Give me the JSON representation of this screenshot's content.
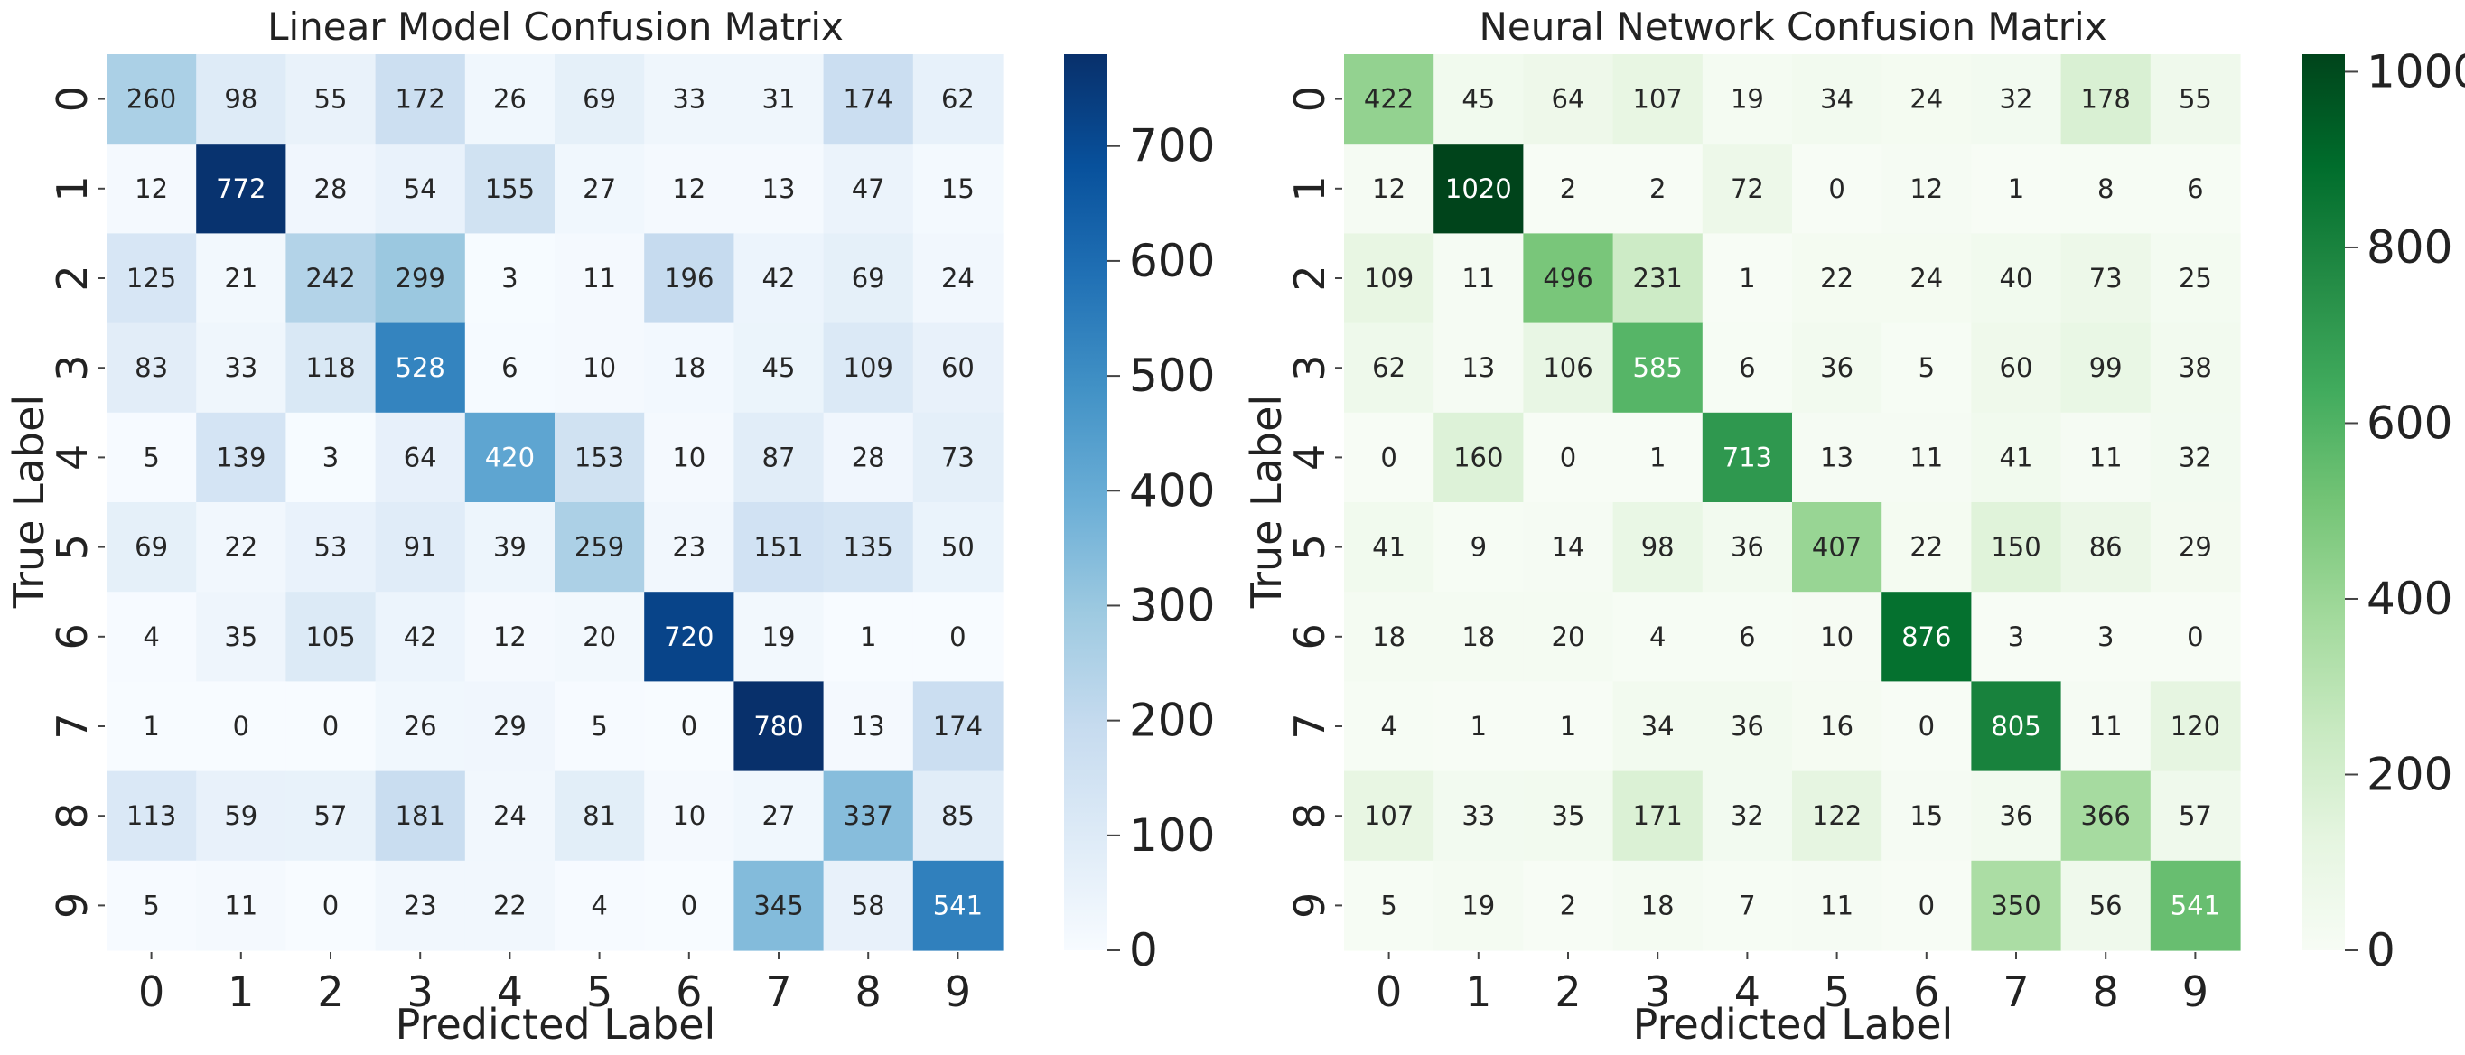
{
  "chart_data": [
    {
      "type": "heatmap",
      "title": "Linear Model Confusion Matrix",
      "xlabel": "Predicted Label",
      "ylabel": "True Label",
      "x_categories": [
        "0",
        "1",
        "2",
        "3",
        "4",
        "5",
        "6",
        "7",
        "8",
        "9"
      ],
      "y_categories": [
        "0",
        "1",
        "2",
        "3",
        "4",
        "5",
        "6",
        "7",
        "8",
        "9"
      ],
      "colormap": "Blues",
      "color_low": "#f7fbff",
      "color_high": "#08306b",
      "vmin": 0,
      "vmax": 780,
      "colorbar_ticks": [
        "0",
        "100",
        "200",
        "300",
        "400",
        "500",
        "600",
        "700"
      ],
      "values": [
        [
          260,
          98,
          55,
          172,
          26,
          69,
          33,
          31,
          174,
          62
        ],
        [
          12,
          772,
          28,
          54,
          155,
          27,
          12,
          13,
          47,
          15
        ],
        [
          125,
          21,
          242,
          299,
          3,
          11,
          196,
          42,
          69,
          24
        ],
        [
          83,
          33,
          118,
          528,
          6,
          10,
          18,
          45,
          109,
          60
        ],
        [
          5,
          139,
          3,
          64,
          420,
          153,
          10,
          87,
          28,
          73
        ],
        [
          69,
          22,
          53,
          91,
          39,
          259,
          23,
          151,
          135,
          50
        ],
        [
          4,
          35,
          105,
          42,
          12,
          20,
          720,
          19,
          1,
          0
        ],
        [
          1,
          0,
          0,
          26,
          29,
          5,
          0,
          780,
          13,
          174
        ],
        [
          113,
          59,
          57,
          181,
          24,
          81,
          10,
          27,
          337,
          85
        ],
        [
          5,
          11,
          0,
          23,
          22,
          4,
          0,
          345,
          58,
          541
        ]
      ]
    },
    {
      "type": "heatmap",
      "title": "Neural Network Confusion Matrix",
      "xlabel": "Predicted Label",
      "ylabel": "True Label",
      "x_categories": [
        "0",
        "1",
        "2",
        "3",
        "4",
        "5",
        "6",
        "7",
        "8",
        "9"
      ],
      "y_categories": [
        "0",
        "1",
        "2",
        "3",
        "4",
        "5",
        "6",
        "7",
        "8",
        "9"
      ],
      "colormap": "Greens",
      "color_low": "#f7fcf5",
      "color_high": "#00441b",
      "vmin": 0,
      "vmax": 1020,
      "colorbar_ticks": [
        "0",
        "200",
        "400",
        "600",
        "800",
        "1000"
      ],
      "values": [
        [
          422,
          45,
          64,
          107,
          19,
          34,
          24,
          32,
          178,
          55
        ],
        [
          12,
          1020,
          2,
          2,
          72,
          0,
          12,
          1,
          8,
          6
        ],
        [
          109,
          11,
          496,
          231,
          1,
          22,
          24,
          40,
          73,
          25
        ],
        [
          62,
          13,
          106,
          585,
          6,
          36,
          5,
          60,
          99,
          38
        ],
        [
          0,
          160,
          0,
          1,
          713,
          13,
          11,
          41,
          11,
          32
        ],
        [
          41,
          9,
          14,
          98,
          36,
          407,
          22,
          150,
          86,
          29
        ],
        [
          18,
          18,
          20,
          4,
          6,
          10,
          876,
          3,
          3,
          0
        ],
        [
          4,
          1,
          1,
          34,
          36,
          16,
          0,
          805,
          11,
          120
        ],
        [
          107,
          33,
          35,
          171,
          32,
          122,
          15,
          36,
          366,
          57
        ],
        [
          5,
          19,
          2,
          18,
          7,
          11,
          0,
          350,
          56,
          541
        ]
      ]
    }
  ]
}
